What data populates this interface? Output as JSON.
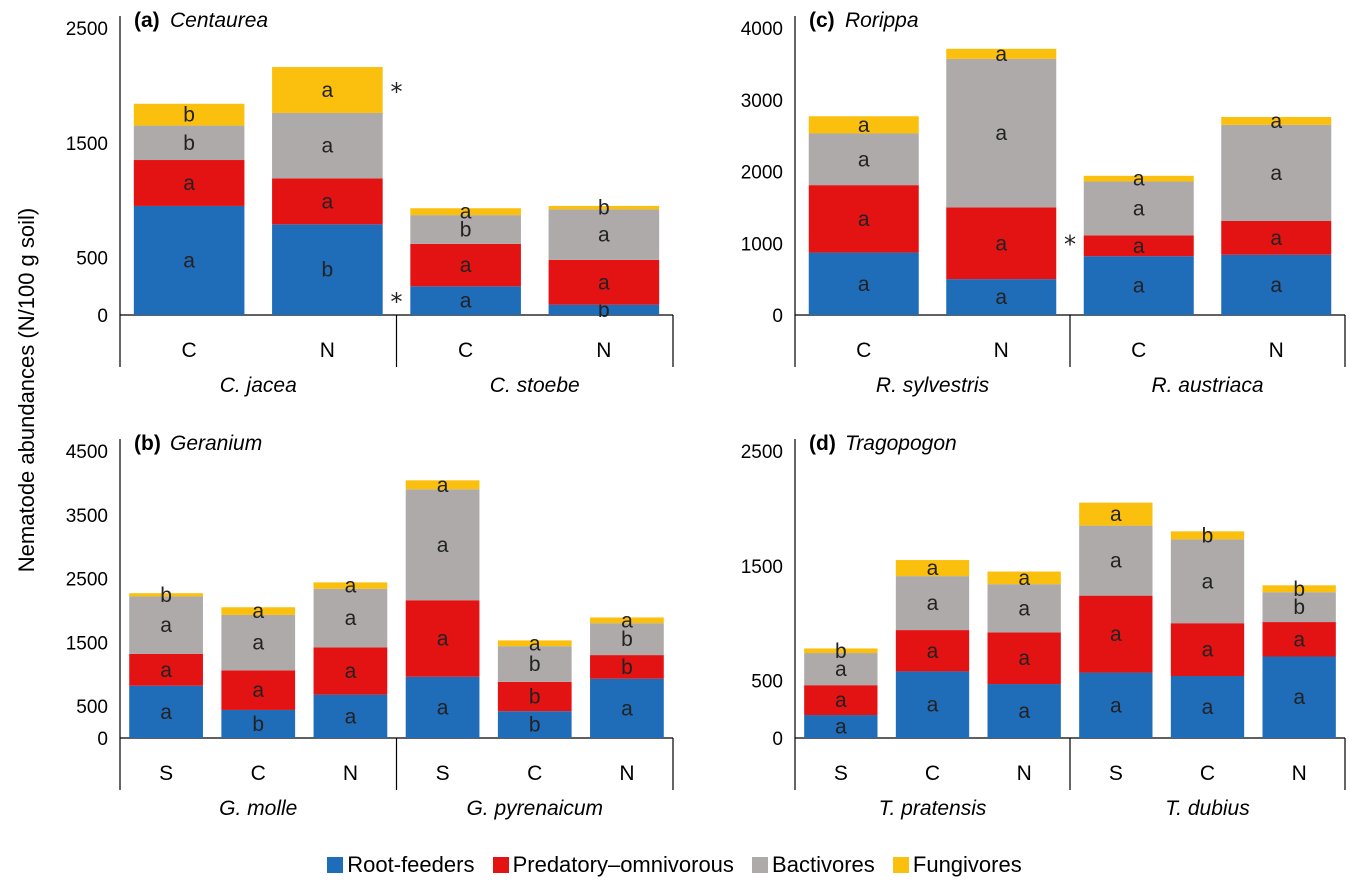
{
  "y_axis_label": "Nematode abundances (N/100 g soil)",
  "legend": [
    {
      "name": "Root-feeders",
      "color": "#1f6cb8"
    },
    {
      "name": "Predatory–omnivorous",
      "color": "#e31313"
    },
    {
      "name": "Bactivores",
      "color": "#adaaa9"
    },
    {
      "name": "Fungivores",
      "color": "#fbbf0e"
    }
  ],
  "chart_data": [
    {
      "type": "bar",
      "stacked": true,
      "panel_letter": "(a)",
      "title": "Centaurea",
      "yticks": [
        0,
        500,
        1500,
        2500
      ],
      "ylim": [
        0,
        2500
      ],
      "categories": [
        "C",
        "N",
        "C",
        "N"
      ],
      "groups": [
        {
          "name": "C. jacea",
          "span": 2
        },
        {
          "name": "C. stoebe",
          "span": 2
        }
      ],
      "series": [
        {
          "name": "Root-feeders",
          "values": [
            950,
            790,
            250,
            90
          ],
          "labels": [
            "a",
            "b",
            "a",
            "b"
          ]
        },
        {
          "name": "Predatory–omnivorous",
          "values": [
            400,
            400,
            370,
            390
          ],
          "labels": [
            "a",
            "a",
            "a",
            "a"
          ]
        },
        {
          "name": "Bactivores",
          "values": [
            300,
            570,
            250,
            440
          ],
          "labels": [
            "b",
            "a",
            "b",
            "a"
          ]
        },
        {
          "name": "Fungivores",
          "values": [
            190,
            400,
            60,
            30
          ],
          "labels": [
            "b",
            "a",
            "a",
            "b"
          ]
        }
      ],
      "annotations": [
        {
          "text": "*",
          "after_index": 1,
          "value": 1950
        },
        {
          "text": "*",
          "after_index": 1,
          "value": 120
        }
      ]
    },
    {
      "type": "bar",
      "stacked": true,
      "panel_letter": "(c)",
      "title": "Rorippa",
      "yticks": [
        0,
        1000,
        2000,
        3000,
        4000
      ],
      "ylim": [
        0,
        4000
      ],
      "categories": [
        "C",
        "N",
        "C",
        "N"
      ],
      "groups": [
        {
          "name": "R. sylvestris",
          "span": 2
        },
        {
          "name": "R. austriaca",
          "span": 2
        }
      ],
      "series": [
        {
          "name": "Root-feeders",
          "values": [
            870,
            500,
            820,
            840
          ],
          "labels": [
            "a",
            "a",
            "a",
            "a"
          ]
        },
        {
          "name": "Predatory–omnivorous",
          "values": [
            940,
            1000,
            290,
            470
          ],
          "labels": [
            "a",
            "a",
            "a",
            "a"
          ]
        },
        {
          "name": "Bactivores",
          "values": [
            720,
            2070,
            750,
            1340
          ],
          "labels": [
            "a",
            "a",
            "a",
            "a"
          ]
        },
        {
          "name": "Fungivores",
          "values": [
            240,
            140,
            80,
            110
          ],
          "labels": [
            "a",
            "a",
            "a",
            "a"
          ]
        }
      ],
      "annotations": [
        {
          "text": "*",
          "after_index": 1,
          "value": 1000
        }
      ]
    },
    {
      "type": "bar",
      "stacked": true,
      "panel_letter": "(b)",
      "title": "Geranium",
      "yticks": [
        0,
        500,
        1500,
        2500,
        3500,
        4500
      ],
      "ylim": [
        0,
        4500
      ],
      "categories": [
        "S",
        "C",
        "N",
        "S",
        "C",
        "N"
      ],
      "groups": [
        {
          "name": "G. molle",
          "span": 3
        },
        {
          "name": "G. pyrenaicum",
          "span": 3
        }
      ],
      "series": [
        {
          "name": "Root-feeders",
          "values": [
            820,
            440,
            680,
            960,
            420,
            930
          ],
          "labels": [
            "a",
            "b",
            "a",
            "a",
            "b",
            "a"
          ]
        },
        {
          "name": "Predatory–omnivorous",
          "values": [
            500,
            620,
            740,
            1200,
            460,
            370
          ],
          "labels": [
            "a",
            "a",
            "a",
            "a",
            "b",
            "b"
          ]
        },
        {
          "name": "Bactivores",
          "values": [
            900,
            870,
            920,
            1740,
            560,
            500
          ],
          "labels": [
            "a",
            "a",
            "a",
            "a",
            "b",
            "b"
          ]
        },
        {
          "name": "Fungivores",
          "values": [
            50,
            120,
            100,
            140,
            90,
            90
          ],
          "labels": [
            "b",
            "a",
            "a",
            "a",
            "a",
            "a"
          ]
        }
      ]
    },
    {
      "type": "bar",
      "stacked": true,
      "panel_letter": "(d)",
      "title": "Tragopogon",
      "yticks": [
        0,
        500,
        1500,
        2500
      ],
      "ylim": [
        0,
        2500
      ],
      "categories": [
        "S",
        "C",
        "N",
        "S",
        "C",
        "N"
      ],
      "groups": [
        {
          "name": "T. pratensis",
          "span": 3
        },
        {
          "name": "T. dubius",
          "span": 3
        }
      ],
      "series": [
        {
          "name": "Root-feeders",
          "values": [
            200,
            580,
            470,
            570,
            540,
            710
          ],
          "labels": [
            "a",
            "a",
            "a",
            "a",
            "a",
            "a"
          ]
        },
        {
          "name": "Predatory–omnivorous",
          "values": [
            260,
            360,
            450,
            670,
            460,
            300
          ],
          "labels": [
            "a",
            "a",
            "a",
            "a",
            "a",
            "a"
          ]
        },
        {
          "name": "Bactivores",
          "values": [
            280,
            470,
            420,
            610,
            730,
            260
          ],
          "labels": [
            "a",
            "a",
            "a",
            "a",
            "a",
            "b"
          ]
        },
        {
          "name": "Fungivores",
          "values": [
            40,
            140,
            110,
            200,
            70,
            60
          ],
          "labels": [
            "b",
            "a",
            "a",
            "a",
            "b",
            "b"
          ]
        }
      ]
    }
  ]
}
